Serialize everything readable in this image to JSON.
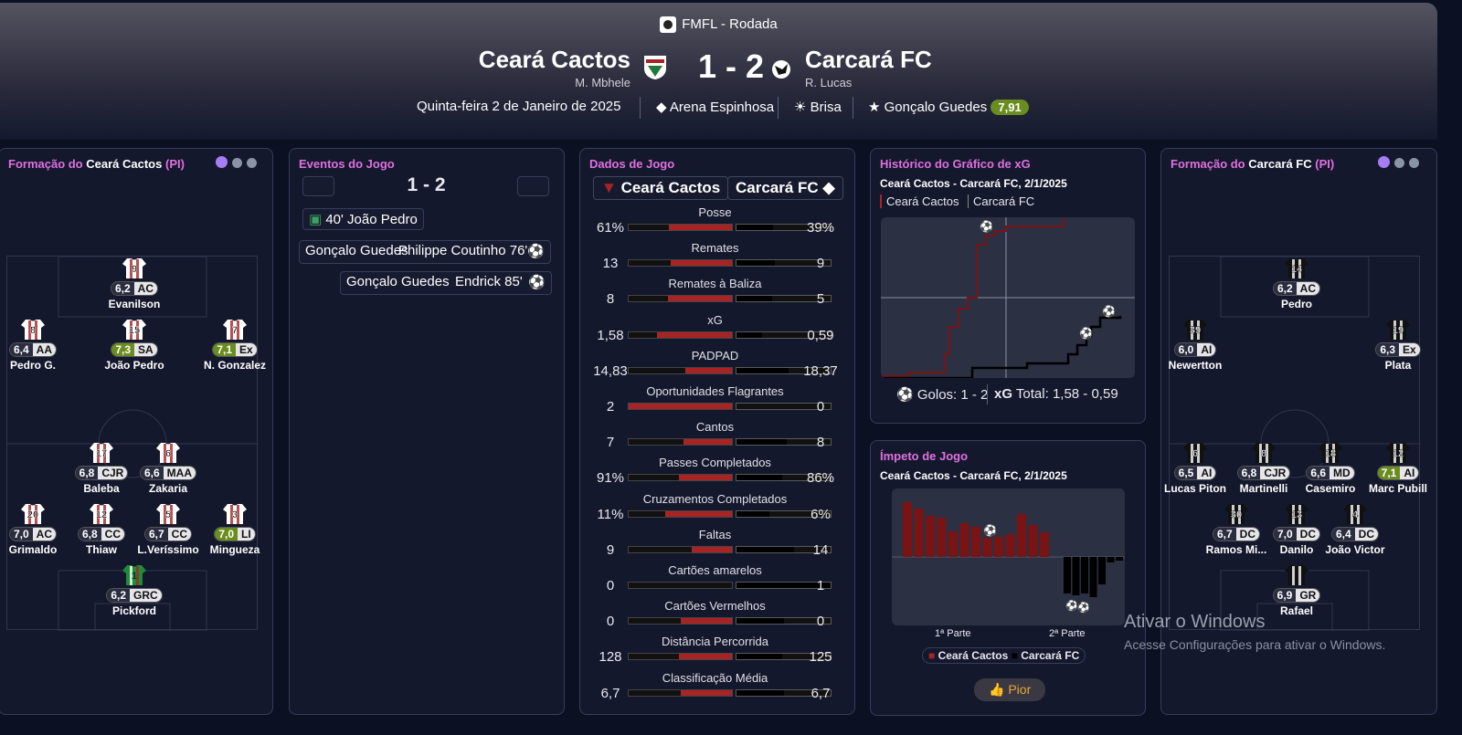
{
  "header": {
    "competition": "FMFL - Rodada",
    "home_team": "Ceará Cactos",
    "home_coach": "M. Mbhele",
    "away_team": "Carcará FC",
    "away_coach": "R. Lucas",
    "score": "1 - 2",
    "date": "Quinta-feira 2 de Janeiro de 2025",
    "stadium": "Arena Espinhosa",
    "weather": "Brisa",
    "potm_name": "Gonçalo Guedes",
    "potm_rating": "7,91"
  },
  "home_lineup": {
    "title_prefix": "Formação do",
    "team": "Ceará Cactos",
    "suffix": "(PI)",
    "players": [
      {
        "num": "9",
        "rating": "6,2",
        "pos": "AC",
        "name": "Evanilson",
        "good": false
      },
      {
        "num": "8",
        "rating": "6,4",
        "pos": "AA",
        "name": "Pedro G.",
        "good": false
      },
      {
        "num": "15",
        "rating": "7,3",
        "pos": "SA",
        "name": "João Pedro",
        "good": true
      },
      {
        "num": "7",
        "rating": "7,1",
        "pos": "Ex",
        "name": "N. Gonzalez",
        "good": true
      },
      {
        "num": "17",
        "rating": "6,8",
        "pos": "CJR",
        "name": "Baleba",
        "good": false
      },
      {
        "num": "6",
        "rating": "6,6",
        "pos": "MAA",
        "name": "Zakaria",
        "good": false
      },
      {
        "num": "20",
        "rating": "7,0",
        "pos": "AC",
        "name": "Grimaldo",
        "good": false
      },
      {
        "num": "12",
        "rating": "6,8",
        "pos": "CC",
        "name": "Thiaw",
        "good": false
      },
      {
        "num": "5",
        "rating": "6,7",
        "pos": "CC",
        "name": "L.Veríssimo",
        "good": false
      },
      {
        "num": "3",
        "rating": "7,0",
        "pos": "LI",
        "name": "Mingueza",
        "good": true
      },
      {
        "num": "1",
        "rating": "6,2",
        "pos": "GRC",
        "name": "Pickford",
        "good": false
      }
    ]
  },
  "away_lineup": {
    "title_prefix": "Formação do",
    "team": "Carcará FC",
    "suffix": "(PI)",
    "players": [
      {
        "num": "14",
        "rating": "6,2",
        "pos": "AC",
        "name": "Pedro",
        "good": false
      },
      {
        "num": "39",
        "rating": "6,0",
        "pos": "AI",
        "name": "Newertton",
        "good": false
      },
      {
        "num": "19",
        "rating": "6,3",
        "pos": "Ex",
        "name": "Plata",
        "good": false
      },
      {
        "num": "6",
        "rating": "6,5",
        "pos": "AI",
        "name": "Lucas Piton",
        "good": false
      },
      {
        "num": "8",
        "rating": "6,8",
        "pos": "CJR",
        "name": "Martinelli",
        "good": false
      },
      {
        "num": "18",
        "rating": "6,6",
        "pos": "MD",
        "name": "Casemiro",
        "good": false
      },
      {
        "num": "12",
        "rating": "7,1",
        "pos": "AI",
        "name": "Marc Pubill",
        "good": true
      },
      {
        "num": "30",
        "rating": "6,7",
        "pos": "DC",
        "name": "Ramos Mi...",
        "good": false
      },
      {
        "num": "13",
        "rating": "7,0",
        "pos": "DC",
        "name": "Danilo",
        "good": false
      },
      {
        "num": "4",
        "rating": "6,4",
        "pos": "DC",
        "name": "João Victor",
        "good": false
      },
      {
        "num": "",
        "rating": "6,9",
        "pos": "GR",
        "name": "Rafael",
        "good": false
      }
    ]
  },
  "events": {
    "title": "Eventos do Jogo",
    "score": "1 - 2",
    "items": [
      "40' João Pedro",
      "Gonçalo Guedes",
      "Philippe Coutinho 76'",
      "Gonçalo Guedes",
      "Endrick 85'"
    ]
  },
  "stats": {
    "title": "Dados de Jogo",
    "home": "Ceará Cactos",
    "away": "Carcará FC",
    "rows": [
      {
        "name": "Posse",
        "h": "61%",
        "a": "39%",
        "hf": 0.61,
        "af": 0.39
      },
      {
        "name": "Remates",
        "h": "13",
        "a": "9",
        "hf": 0.59,
        "af": 0.41
      },
      {
        "name": "Remates à Baliza",
        "h": "8",
        "a": "5",
        "hf": 0.62,
        "af": 0.38
      },
      {
        "name": "xG",
        "h": "1,58",
        "a": "0,59",
        "hf": 0.73,
        "af": 0.27
      },
      {
        "name": "PADPAD",
        "h": "14,83",
        "a": "18,37",
        "hf": 0.45,
        "af": 0.55
      },
      {
        "name": "Oportunidades Flagrantes",
        "h": "2",
        "a": "0",
        "hf": 1.0,
        "af": 0.0
      },
      {
        "name": "Cantos",
        "h": "7",
        "a": "8",
        "hf": 0.47,
        "af": 0.53
      },
      {
        "name": "Passes Completados",
        "h": "91%",
        "a": "86%",
        "hf": 0.51,
        "af": 0.49
      },
      {
        "name": "Cruzamentos Completados",
        "h": "11%",
        "a": "6%",
        "hf": 0.65,
        "af": 0.35
      },
      {
        "name": "Faltas",
        "h": "9",
        "a": "14",
        "hf": 0.39,
        "af": 0.61
      },
      {
        "name": "Cartões amarelos",
        "h": "0",
        "a": "1",
        "hf": 0.0,
        "af": 1.0
      },
      {
        "name": "Cartões Vermelhos",
        "h": "0",
        "a": "0",
        "hf": 0.5,
        "af": 0.5
      },
      {
        "name": "Distância Percorrida",
        "h": "128",
        "a": "125",
        "hf": 0.51,
        "af": 0.49
      },
      {
        "name": "Classificação Média",
        "h": "6,7",
        "a": "6,7",
        "hf": 0.5,
        "af": 0.5
      }
    ]
  },
  "xg_chart": {
    "title": "Histórico do Gráfico de xG",
    "subtitle": "Ceará Cactos - Carcará FC, 2/1/2025",
    "legend_home": "Ceará Cactos",
    "legend_away": "Carcará FC",
    "goals_label": "Golos: 1 - 2",
    "xg_label": "xG",
    "xg_total": "Total: 1,58 - 0,59"
  },
  "momentum": {
    "title": "Ímpeto de Jogo",
    "subtitle": "Ceará Cactos - Carcará FC, 2/1/2025",
    "first_half": "1ª Parte",
    "second_half": "2ª Parte",
    "legend_home": "Ceará Cactos",
    "legend_away": "Carcará FC",
    "button": "Pior"
  },
  "watermark": {
    "line1": "Ativar o Windows",
    "line2": "Acesse Configurações para ativar o Windows."
  }
}
